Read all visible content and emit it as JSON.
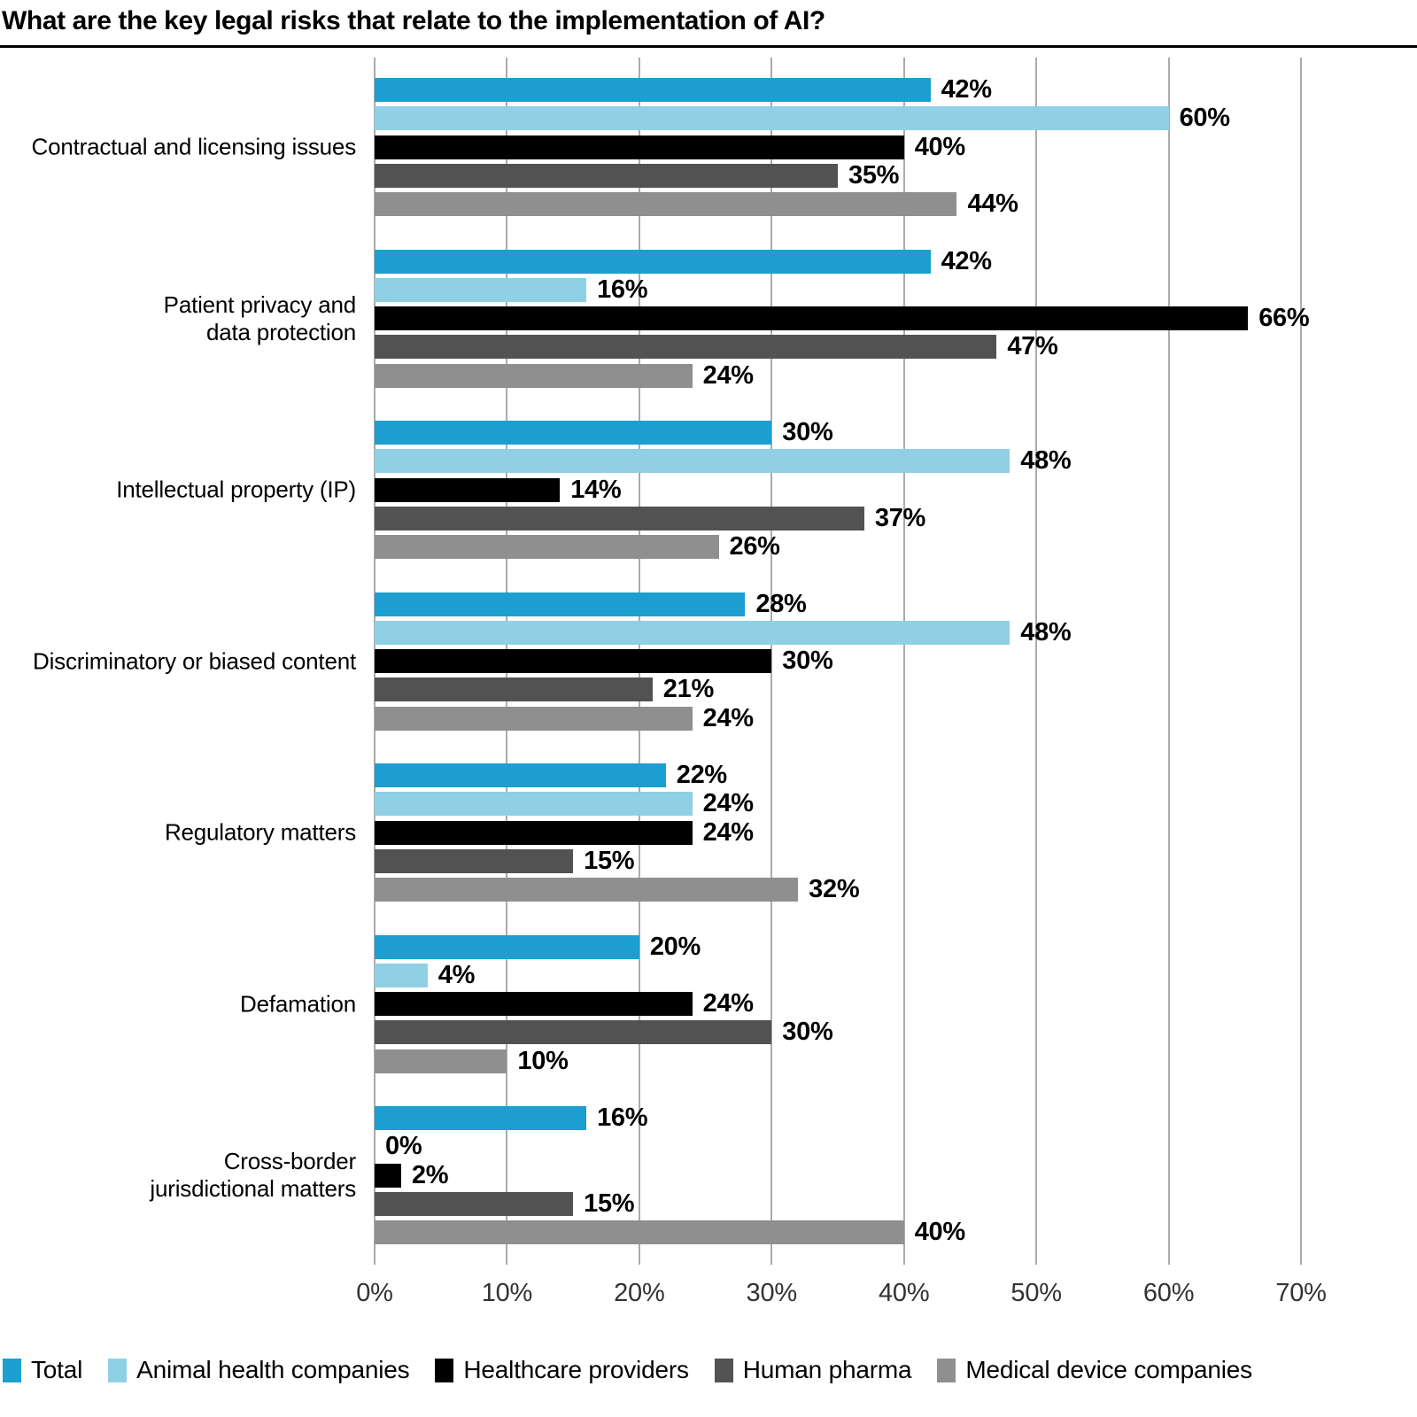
{
  "title": "What are the key legal risks that relate to the implementation of AI?",
  "chart_data": {
    "type": "bar",
    "orientation": "horizontal",
    "title": "What are the key legal risks that relate to the implementation of AI?",
    "categories": [
      "Contractual and licensing issues",
      "Patient privacy and\ndata protection",
      "Intellectual property (IP)",
      "Discriminatory or biased content",
      "Regulatory matters",
      "Defamation",
      "Cross-border\njurisdictional matters"
    ],
    "series": [
      {
        "name": "Total",
        "color": "#1C9FD0",
        "values": [
          42,
          42,
          30,
          28,
          22,
          20,
          16
        ]
      },
      {
        "name": "Animal health companies",
        "color": "#8FD0E4",
        "values": [
          60,
          16,
          48,
          48,
          24,
          4,
          0
        ]
      },
      {
        "name": "Healthcare providers",
        "color": "#000000",
        "values": [
          40,
          66,
          14,
          30,
          24,
          24,
          2
        ]
      },
      {
        "name": "Human pharma",
        "color": "#525252",
        "values": [
          35,
          47,
          37,
          21,
          15,
          30,
          15
        ]
      },
      {
        "name": "Medical device companies",
        "color": "#8F8F8F",
        "values": [
          44,
          24,
          26,
          24,
          32,
          10,
          40
        ]
      }
    ],
    "value_suffix": "%",
    "xlim": [
      0,
      70
    ],
    "x_ticks": [
      "0%",
      "10%",
      "20%",
      "30%",
      "40%",
      "50%",
      "60%",
      "70%"
    ],
    "grid": true,
    "grid_color": "#ABABAB",
    "legend_position": "bottom"
  }
}
